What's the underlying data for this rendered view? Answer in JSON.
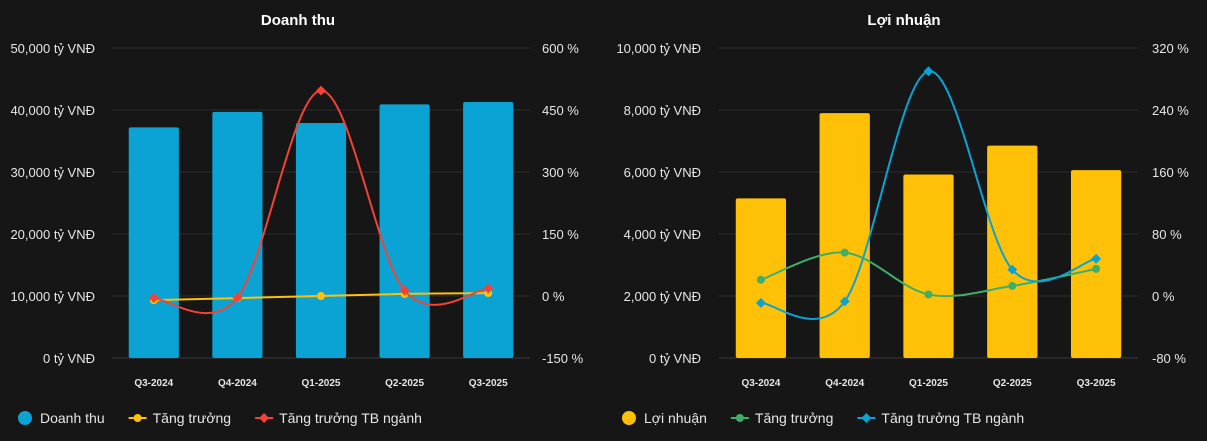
{
  "charts": [
    {
      "title": "Doanh thu",
      "categories": [
        "Q3-2024",
        "Q4-2024",
        "Q1-2025",
        "Q2-2025",
        "Q3-2025"
      ],
      "bar": {
        "name": "Doanh thu",
        "color": "#0aa3d4",
        "values": [
          37200,
          39700,
          37900,
          40900,
          41300
        ]
      },
      "lines": [
        {
          "name": "Tăng trưởng",
          "color": "#ffc107",
          "values": [
            -10,
            -5,
            0,
            5,
            7
          ]
        },
        {
          "name": "Tăng trưởng TB ngành",
          "color": "#f44336",
          "values": [
            -5,
            -4,
            497,
            13,
            18
          ]
        }
      ],
      "left_axis": {
        "min": 0,
        "max": 50000,
        "ticks": [
          "0 tỷ VNĐ",
          "10,000 tỷ VNĐ",
          "20,000 tỷ VNĐ",
          "30,000 tỷ VNĐ",
          "40,000 tỷ VNĐ",
          "50,000 tỷ VNĐ"
        ]
      },
      "right_axis": {
        "min": -150,
        "max": 600,
        "ticks": [
          "-150 %",
          "0 %",
          "150 %",
          "300 %",
          "450 %",
          "600 %"
        ]
      }
    },
    {
      "title": "Lợi nhuận",
      "categories": [
        "Q3-2024",
        "Q4-2024",
        "Q1-2025",
        "Q2-2025",
        "Q3-2025"
      ],
      "bar": {
        "name": "Lợi nhuận",
        "color": "#ffc107",
        "values": [
          5150,
          7900,
          5920,
          6850,
          6060
        ]
      },
      "lines": [
        {
          "name": "Tăng trưởng",
          "color": "#3fae6a",
          "values": [
            21,
            56,
            2,
            13,
            35
          ]
        },
        {
          "name": "Tăng trưởng TB ngành",
          "color": "#0aa3d4",
          "values": [
            -9,
            -7,
            290,
            34,
            48
          ]
        }
      ],
      "left_axis": {
        "min": 0,
        "max": 10000,
        "ticks": [
          "0 tỷ VNĐ",
          "2,000 tỷ VNĐ",
          "4,000 tỷ VNĐ",
          "6,000 tỷ VNĐ",
          "8,000 tỷ VNĐ",
          "10,000 tỷ VNĐ"
        ]
      },
      "right_axis": {
        "min": -80,
        "max": 320,
        "ticks": [
          "-80 %",
          "0 %",
          "80 %",
          "160 %",
          "240 %",
          "320 %"
        ]
      }
    }
  ],
  "chart_data": [
    {
      "type": "bar",
      "title": "Doanh thu",
      "categories": [
        "Q3-2024",
        "Q4-2024",
        "Q1-2025",
        "Q2-2025",
        "Q3-2025"
      ],
      "series": [
        {
          "name": "Doanh thu",
          "values": [
            37200,
            39700,
            37900,
            40900,
            41300
          ],
          "axis": "left",
          "unit": "tỷ VNĐ"
        },
        {
          "name": "Tăng trưởng",
          "values": [
            -10,
            -5,
            0,
            5,
            7
          ],
          "axis": "right",
          "unit": "%"
        },
        {
          "name": "Tăng trưởng TB ngành",
          "values": [
            -5,
            -4,
            497,
            13,
            18
          ],
          "axis": "right",
          "unit": "%"
        }
      ],
      "ylim": [
        0,
        50000
      ],
      "y2lim": [
        -150,
        600
      ]
    },
    {
      "type": "bar",
      "title": "Lợi nhuận",
      "categories": [
        "Q3-2024",
        "Q4-2024",
        "Q1-2025",
        "Q2-2025",
        "Q3-2025"
      ],
      "series": [
        {
          "name": "Lợi nhuận",
          "values": [
            5150,
            7900,
            5920,
            6850,
            6060
          ],
          "axis": "left",
          "unit": "tỷ VNĐ"
        },
        {
          "name": "Tăng trưởng",
          "values": [
            21,
            56,
            2,
            13,
            35
          ],
          "axis": "right",
          "unit": "%"
        },
        {
          "name": "Tăng trưởng TB ngành",
          "values": [
            -9,
            -7,
            290,
            34,
            48
          ],
          "axis": "right",
          "unit": "%"
        }
      ],
      "ylim": [
        0,
        10000
      ],
      "y2lim": [
        -80,
        320
      ]
    }
  ]
}
